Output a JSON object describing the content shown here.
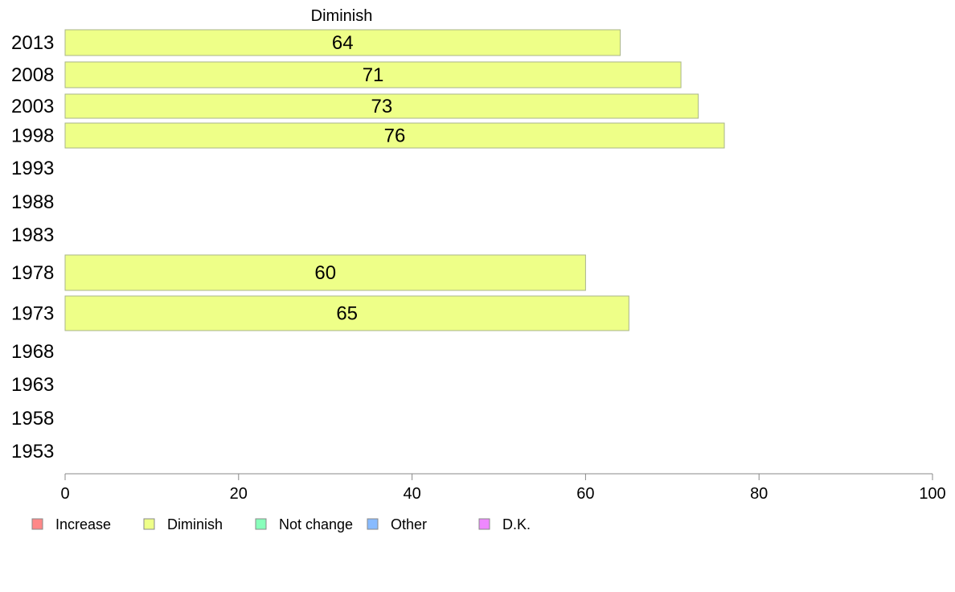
{
  "chart_data": {
    "type": "bar",
    "orientation": "horizontal",
    "title": "Diminish",
    "categories": [
      "2013",
      "2008",
      "2003",
      "1998",
      "1993",
      "1988",
      "1983",
      "1978",
      "1973",
      "1968",
      "1963",
      "1958",
      "1953"
    ],
    "series": [
      {
        "name": "Diminish",
        "color": "#eeff88",
        "values": [
          64,
          71,
          73,
          76,
          null,
          null,
          null,
          60,
          65,
          null,
          null,
          null,
          null
        ]
      }
    ],
    "xlim": [
      0,
      100
    ],
    "xticks": [
      0,
      20,
      40,
      60,
      80,
      100
    ],
    "grid": false,
    "legend": {
      "placement": "bottom",
      "items": [
        {
          "label": "Increase",
          "color": "#ff8888"
        },
        {
          "label": "Diminish",
          "color": "#eeff88"
        },
        {
          "label": "Not change",
          "color": "#88ffbb"
        },
        {
          "label": "Other",
          "color": "#88bbff"
        },
        {
          "label": "D.K.",
          "color": "#ee88ff"
        }
      ]
    }
  }
}
